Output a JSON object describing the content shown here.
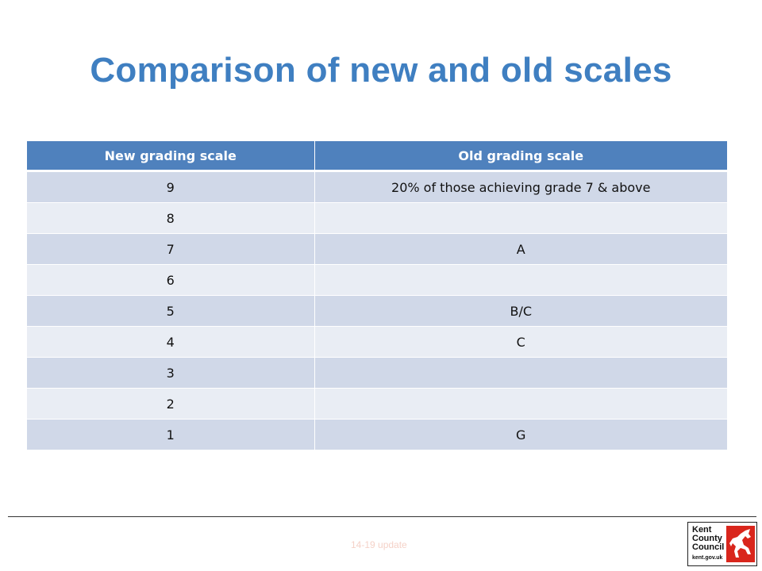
{
  "slide": {
    "title": "Comparison of new and old scales",
    "footer": "14-19 update"
  },
  "table": {
    "headers": [
      "New grading scale",
      "Old grading scale"
    ],
    "rows": [
      [
        "9",
        "20% of those achieving grade 7 & above"
      ],
      [
        "8",
        ""
      ],
      [
        "7",
        "A"
      ],
      [
        "6",
        ""
      ],
      [
        "5",
        "B/C"
      ],
      [
        "4",
        "C"
      ],
      [
        "3",
        ""
      ],
      [
        "2",
        ""
      ],
      [
        "1",
        "G"
      ]
    ]
  },
  "logo": {
    "lines": [
      "Kent",
      "County",
      "Council"
    ],
    "url": "kent.gov.uk",
    "icon": "white-horse-icon"
  },
  "colors": {
    "title": "#3f7fc1",
    "header_bg": "#4f81bd",
    "row_dark": "#d0d8e8",
    "row_light": "#e9edf4",
    "logo_red": "#d9261c"
  }
}
